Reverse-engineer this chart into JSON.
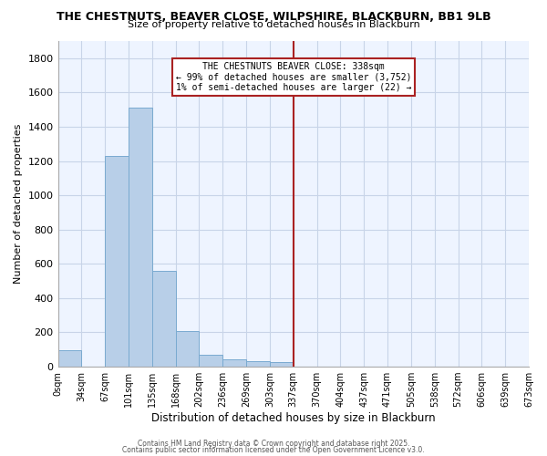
{
  "title": "THE CHESTNUTS, BEAVER CLOSE, WILPSHIRE, BLACKBURN, BB1 9LB",
  "subtitle": "Size of property relative to detached houses in Blackburn",
  "xlabel": "Distribution of detached houses by size in Blackburn",
  "ylabel": "Number of detached properties",
  "bins": [
    "0sqm",
    "34sqm",
    "67sqm",
    "101sqm",
    "135sqm",
    "168sqm",
    "202sqm",
    "236sqm",
    "269sqm",
    "303sqm",
    "337sqm",
    "370sqm",
    "404sqm",
    "437sqm",
    "471sqm",
    "505sqm",
    "538sqm",
    "572sqm",
    "606sqm",
    "639sqm",
    "673sqm"
  ],
  "values": [
    95,
    0,
    1230,
    1510,
    560,
    210,
    70,
    45,
    35,
    25,
    0,
    0,
    0,
    0,
    0,
    0,
    0,
    0,
    0,
    0
  ],
  "property_line_index": 10,
  "bar_color": "#b8cfe8",
  "bar_edge_color": "#7aaad0",
  "background_color": "#eef4ff",
  "grid_color": "#c8d4e8",
  "annotation_box_edge": "#aa2222",
  "annotation_text": [
    "THE CHESTNUTS BEAVER CLOSE: 338sqm",
    "← 99% of detached houses are smaller (3,752)",
    "1% of semi-detached houses are larger (22) →"
  ],
  "ylim": [
    0,
    1900
  ],
  "yticks": [
    0,
    200,
    400,
    600,
    800,
    1000,
    1200,
    1400,
    1600,
    1800
  ],
  "footer1": "Contains HM Land Registry data © Crown copyright and database right 2025.",
  "footer2": "Contains public sector information licensed under the Open Government Licence v3.0."
}
